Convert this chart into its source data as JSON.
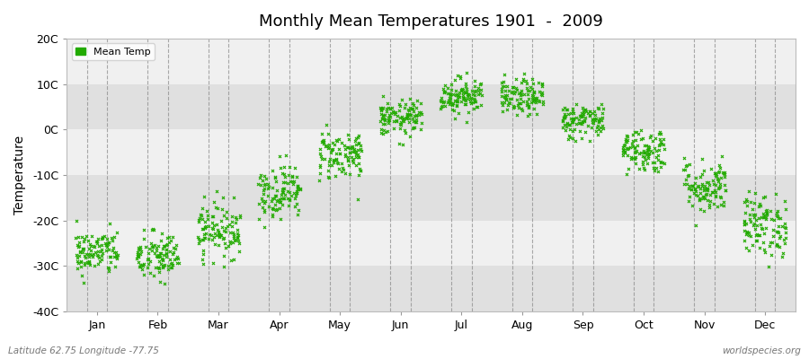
{
  "title": "Monthly Mean Temperatures 1901  -  2009",
  "ylabel": "Temperature",
  "xlabel_labels": [
    "Jan",
    "Feb",
    "Mar",
    "Apr",
    "May",
    "Jun",
    "Jul",
    "Aug",
    "Sep",
    "Oct",
    "Nov",
    "Dec"
  ],
  "footer_left": "Latitude 62.75 Longitude -77.75",
  "footer_right": "worldspecies.org",
  "legend_label": "Mean Temp",
  "ylim": [
    -40,
    20
  ],
  "yticks": [
    -40,
    -30,
    -20,
    -10,
    0,
    10,
    20
  ],
  "ytick_labels": [
    "-40C",
    "-30C",
    "-20C",
    "-10C",
    "0C",
    "10C",
    "20C"
  ],
  "n_years": 109,
  "monthly_means": [
    -27.0,
    -28.0,
    -22.0,
    -13.5,
    -5.5,
    2.5,
    7.5,
    7.0,
    2.0,
    -4.5,
    -12.5,
    -21.0
  ],
  "monthly_stds": [
    2.5,
    2.8,
    3.0,
    3.0,
    2.8,
    2.0,
    2.0,
    2.0,
    2.0,
    2.5,
    3.0,
    3.5
  ],
  "dot_color": "#22aa00",
  "dot_size": 5,
  "dot_marker": "x",
  "background_color": "#ffffff",
  "plot_bg_color": "#f0f0f0",
  "alt_band_color": "#e0e0e0",
  "dashed_line_color": "#888888",
  "figsize": [
    9.0,
    4.0
  ],
  "dpi": 100
}
